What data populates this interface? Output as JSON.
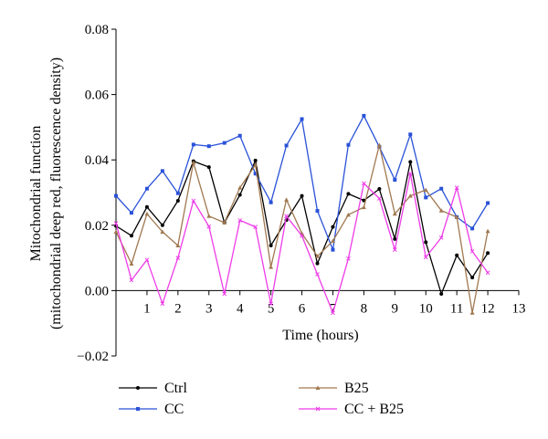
{
  "chart_data": {
    "type": "line",
    "title": "",
    "xlabel": "Time (hours)",
    "ylabel_line1": "Mitochondrial function",
    "ylabel_line2": "(mitochondrial deep red, fluorescence density)",
    "xlim": [
      0,
      13
    ],
    "ylim": [
      -0.02,
      0.08
    ],
    "xticks": [
      1,
      2,
      3,
      4,
      5,
      6,
      7,
      8,
      9,
      10,
      11,
      12,
      13
    ],
    "yticks": [
      -0.02,
      0.0,
      0.02,
      0.04,
      0.06,
      0.08
    ],
    "ytick_labels": [
      "−0.02",
      "0.00",
      "0.02",
      "0.04",
      "0.06",
      "0.08"
    ],
    "grid": false,
    "legend_position": "bottom",
    "x": [
      0,
      0.5,
      1,
      1.5,
      2,
      2.5,
      3,
      3.5,
      4,
      4.5,
      5,
      5.5,
      6,
      6.5,
      7,
      7.5,
      8,
      8.5,
      9,
      9.5,
      10,
      10.5,
      11,
      11.5,
      12
    ],
    "series": [
      {
        "name": "Ctrl",
        "color": "#000000",
        "marker": "circle",
        "values": [
          0.0198,
          0.0168,
          0.0256,
          0.02,
          0.0275,
          0.0396,
          0.0378,
          0.0208,
          0.0293,
          0.0398,
          0.0138,
          0.0216,
          0.029,
          0.0083,
          0.0195,
          0.0296,
          0.0276,
          0.0311,
          0.0158,
          0.0394,
          0.0148,
          -0.001,
          0.0108,
          0.004,
          0.0115
        ]
      },
      {
        "name": "CC",
        "color": "#2a52d8",
        "marker": "square",
        "values": [
          0.029,
          0.0238,
          0.0312,
          0.0366,
          0.0298,
          0.0447,
          0.0442,
          0.0452,
          0.0474,
          0.0358,
          0.027,
          0.0444,
          0.0525,
          0.0244,
          0.0125,
          0.0446,
          0.0535,
          0.044,
          0.0339,
          0.0478,
          0.0285,
          0.0312,
          0.0225,
          0.019,
          0.0268
        ]
      },
      {
        "name": "B25",
        "color": "#a07850",
        "marker": "triangle",
        "values": [
          0.018,
          0.0082,
          0.0235,
          0.018,
          0.0138,
          0.0392,
          0.0228,
          0.0208,
          0.0315,
          0.0385,
          0.0072,
          0.0278,
          0.0175,
          0.0105,
          0.0152,
          0.0232,
          0.0255,
          0.0445,
          0.0235,
          0.029,
          0.0308,
          0.0245,
          0.0225,
          -0.0068,
          0.0182
        ]
      },
      {
        "name": "CC + B25",
        "color": "#ee3ce8",
        "marker": "cross",
        "values": [
          0.0206,
          0.0032,
          0.0094,
          -0.004,
          0.01,
          0.0275,
          0.0196,
          -0.001,
          0.0215,
          0.0195,
          -0.004,
          0.0228,
          0.0168,
          0.005,
          -0.0068,
          0.0098,
          0.0328,
          0.0282,
          0.0125,
          0.0358,
          0.0102,
          0.0162,
          0.0315,
          0.012,
          0.0055
        ]
      }
    ]
  }
}
